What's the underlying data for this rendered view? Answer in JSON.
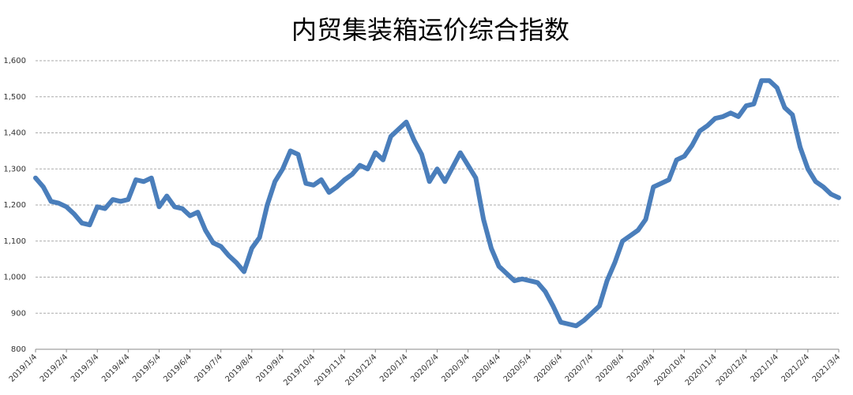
{
  "chart_data": {
    "type": "line",
    "title": "内贸集装箱运价综合指数",
    "categories": [
      "2019/1/4",
      null,
      null,
      null,
      "2019/2/4",
      null,
      null,
      null,
      "2019/3/4",
      null,
      null,
      null,
      "2019/4/4",
      null,
      null,
      null,
      "2019/5/4",
      null,
      null,
      null,
      "2019/6/4",
      null,
      null,
      null,
      "2019/7/4",
      null,
      null,
      null,
      "2019/8/4",
      null,
      null,
      null,
      "2019/9/4",
      null,
      null,
      null,
      "2019/10/4",
      null,
      null,
      null,
      "2019/11/4",
      null,
      null,
      null,
      "2019/12/4",
      null,
      null,
      null,
      "2020/1/4",
      null,
      null,
      null,
      "2020/2/4",
      null,
      null,
      null,
      "2020/3/4",
      null,
      null,
      null,
      "2020/4/4",
      null,
      null,
      null,
      "2020/5/4",
      null,
      null,
      null,
      "2020/6/4",
      null,
      null,
      null,
      "2020/7/4",
      null,
      null,
      null,
      "2020/8/4",
      null,
      null,
      null,
      "2020/9/4",
      null,
      null,
      null,
      "2020/10/4",
      null,
      null,
      null,
      "2020/11/4",
      null,
      null,
      null,
      "2020/12/4",
      null,
      null,
      null,
      "2021/1/4",
      null,
      null,
      null,
      "2021/2/4",
      null,
      null,
      null,
      "2021/3/4"
    ],
    "values": [
      1275,
      1250,
      1210,
      1205,
      1195,
      1175,
      1150,
      1145,
      1195,
      1190,
      1215,
      1210,
      1215,
      1270,
      1265,
      1275,
      1195,
      1225,
      1195,
      1190,
      1170,
      1180,
      1130,
      1095,
      1085,
      1060,
      1040,
      1015,
      1080,
      1110,
      1200,
      1265,
      1300,
      1350,
      1340,
      1260,
      1255,
      1270,
      1235,
      1250,
      1270,
      1285,
      1310,
      1300,
      1345,
      1325,
      1390,
      1410,
      1430,
      1380,
      1340,
      1265,
      1300,
      1265,
      1305,
      1345,
      1310,
      1275,
      1160,
      1080,
      1030,
      1010,
      990,
      995,
      990,
      985,
      960,
      920,
      875,
      870,
      865,
      880,
      900,
      920,
      990,
      1040,
      1100,
      1115,
      1130,
      1160,
      1250,
      1260,
      1270,
      1325,
      1335,
      1365,
      1405,
      1420,
      1440,
      1445,
      1455,
      1445,
      1475,
      1480,
      1545,
      1545,
      1525,
      1470,
      1450,
      1360,
      1300,
      1265,
      1250,
      1230,
      1220
    ],
    "color": "#4a7ebb",
    "ylim": [
      800,
      1600
    ],
    "yticks": [
      800,
      900,
      {
        "value": 1000,
        "label": "1,000"
      },
      {
        "value": 1100,
        "label": "1,100"
      },
      {
        "value": 1200,
        "label": "1,200"
      },
      {
        "value": 1300,
        "label": "1,300"
      },
      {
        "value": 1400,
        "label": "1,400"
      },
      {
        "value": 1500,
        "label": "1,500"
      },
      {
        "value": 1600,
        "label": "1,600"
      }
    ],
    "grid": true
  }
}
